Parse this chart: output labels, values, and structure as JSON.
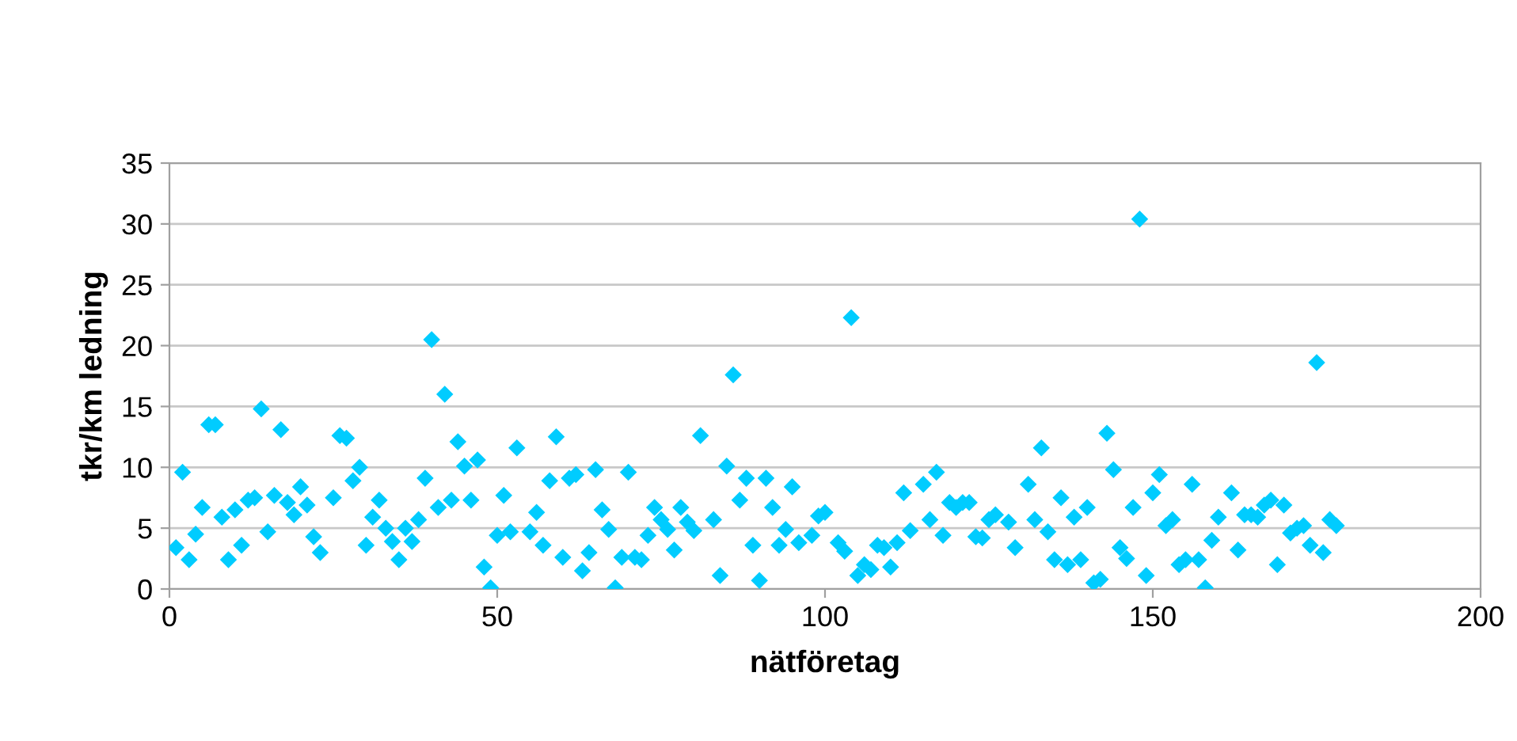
{
  "chart_data": {
    "type": "scatter",
    "xlabel": "nätföretag",
    "ylabel": "tkr/km ledning",
    "xlim": [
      0,
      200
    ],
    "xticks": [
      0,
      50,
      100,
      150,
      200
    ],
    "ylim": [
      0,
      35
    ],
    "yticks": [
      0,
      5,
      10,
      15,
      20,
      25,
      30,
      35
    ],
    "grid": "y",
    "marker": "diamond",
    "series": [
      {
        "color": "#00ccff",
        "x": [
          1,
          2,
          3,
          4,
          5,
          6,
          7,
          8,
          9,
          10,
          11,
          12,
          13,
          14,
          15,
          16,
          17,
          18,
          19,
          20,
          21,
          22,
          23,
          25,
          26,
          27,
          28,
          29,
          30,
          31,
          32,
          33,
          34,
          35,
          36,
          37,
          38,
          39,
          40,
          41,
          42,
          43,
          44,
          45,
          46,
          47,
          48,
          49,
          50,
          51,
          52,
          53,
          55,
          56,
          57,
          58,
          59,
          60,
          61,
          62,
          63,
          64,
          65,
          66,
          67,
          68,
          69,
          70,
          71,
          72,
          73,
          74,
          75,
          76,
          77,
          78,
          79,
          80,
          81,
          83,
          84,
          85,
          86,
          87,
          88,
          89,
          90,
          91,
          92,
          93,
          94,
          95,
          96,
          98,
          99,
          100,
          102,
          103,
          104,
          105,
          106,
          107,
          108,
          109,
          110,
          111,
          112,
          113,
          115,
          116,
          117,
          118,
          119,
          120,
          121,
          122,
          123,
          124,
          125,
          126,
          128,
          129,
          131,
          132,
          133,
          134,
          135,
          136,
          137,
          138,
          139,
          140,
          141,
          142,
          143,
          144,
          145,
          146,
          147,
          148,
          149,
          150,
          151,
          152,
          153,
          154,
          155,
          156,
          157,
          158,
          159,
          160,
          162,
          163,
          164,
          165,
          166,
          167,
          168,
          169,
          170,
          171,
          172,
          173,
          174,
          175,
          176,
          177,
          178
        ],
        "values": [
          3.4,
          9.6,
          2.4,
          4.5,
          6.7,
          13.5,
          13.5,
          5.9,
          2.4,
          6.5,
          3.6,
          7.3,
          7.5,
          14.8,
          4.7,
          7.7,
          13.1,
          7.1,
          6.1,
          8.4,
          6.9,
          4.3,
          3.0,
          7.5,
          12.6,
          12.4,
          8.9,
          10.0,
          3.6,
          5.9,
          7.3,
          5.0,
          3.9,
          2.4,
          5.0,
          3.9,
          5.7,
          9.1,
          20.5,
          6.7,
          16.0,
          7.3,
          12.1,
          10.1,
          7.3,
          10.6,
          1.8,
          0.1,
          4.4,
          7.7,
          4.7,
          11.6,
          4.7,
          6.3,
          3.6,
          8.9,
          12.5,
          2.6,
          9.1,
          9.4,
          1.5,
          3.0,
          9.8,
          6.5,
          4.9,
          0.1,
          2.6,
          9.6,
          2.6,
          2.4,
          4.4,
          6.7,
          5.7,
          4.9,
          3.2,
          6.7,
          5.5,
          4.8,
          12.6,
          5.7,
          1.1,
          10.1,
          17.6,
          7.3,
          9.1,
          3.6,
          0.7,
          9.1,
          6.7,
          3.6,
          4.9,
          8.4,
          3.8,
          4.4,
          6.0,
          6.3,
          3.8,
          3.1,
          22.3,
          1.1,
          2.0,
          1.6,
          3.6,
          3.4,
          1.8,
          3.8,
          7.9,
          4.8,
          8.6,
          5.7,
          9.6,
          4.4,
          7.1,
          6.7,
          7.1,
          7.1,
          4.3,
          4.2,
          5.7,
          6.1,
          5.5,
          3.4,
          8.6,
          5.7,
          11.6,
          4.7,
          2.4,
          7.5,
          2.0,
          5.9,
          2.4,
          6.7,
          0.5,
          0.8,
          12.8,
          9.8,
          3.4,
          2.5,
          6.7,
          30.4,
          1.1,
          7.9,
          9.4,
          5.2,
          5.7,
          2.0,
          2.4,
          8.6,
          2.4,
          0.1,
          4.0,
          5.9,
          7.9,
          3.2,
          6.1,
          6.1,
          5.9,
          6.9,
          7.3,
          2.0,
          6.9,
          4.6,
          5.0,
          5.2,
          3.6,
          18.6,
          3.0,
          5.7,
          5.2
        ]
      }
    ]
  }
}
